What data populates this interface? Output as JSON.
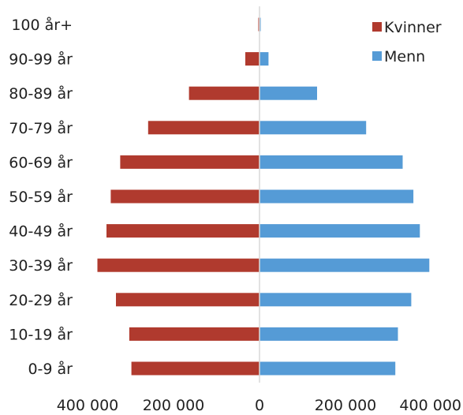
{
  "chart_data": {
    "type": "bar",
    "orientation": "horizontal",
    "layout": "population-pyramid",
    "title": "",
    "xlabel": "",
    "ylabel": "",
    "categories": [
      "100 år+",
      "90-99 år",
      "80-89 år",
      "70-79 år",
      "60-69 år",
      "50-59 år",
      "40-49 år",
      "30-39 år",
      "20-29 år",
      "10-19 år",
      "0-9 år"
    ],
    "series": [
      {
        "name": "Kvinner",
        "color": "#b03a2e",
        "side": "left",
        "values": [
          1000,
          33000,
          164000,
          259000,
          324000,
          346000,
          356000,
          377000,
          334000,
          303000,
          298000
        ]
      },
      {
        "name": "Menn",
        "color": "#559bd6",
        "side": "right",
        "values": [
          1000,
          21000,
          134000,
          248000,
          333000,
          358000,
          373000,
          395000,
          353000,
          322000,
          316000
        ]
      }
    ],
    "xlim": [
      -400000,
      400000
    ],
    "xticks": [
      {
        "value": -400000,
        "label": "400 000"
      },
      {
        "value": -200000,
        "label": "200 000"
      },
      {
        "value": 0,
        "label": "0"
      },
      {
        "value": 200000,
        "label": "200 000"
      },
      {
        "value": 400000,
        "label": "400 000"
      }
    ],
    "grid": false,
    "legend_position": "top-right"
  }
}
